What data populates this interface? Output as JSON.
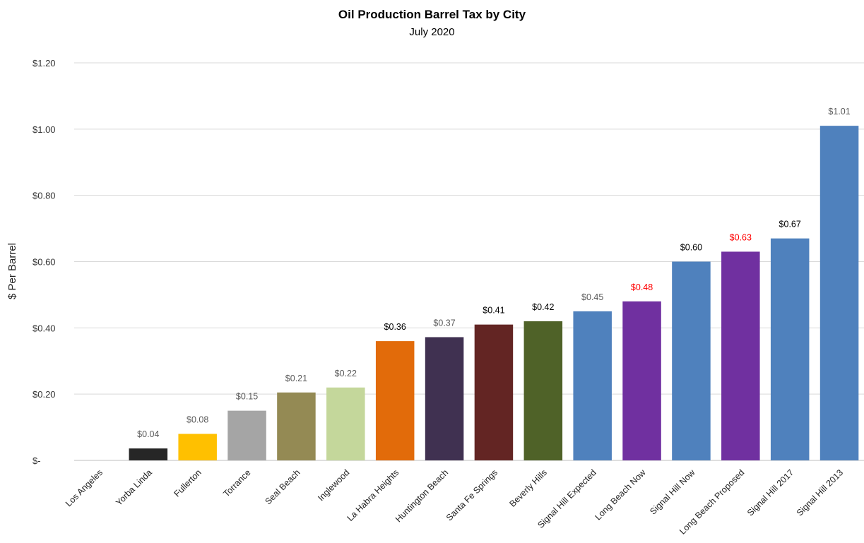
{
  "chart_data": {
    "type": "bar",
    "title": "Oil Production Barrel Tax by City",
    "subtitle": "July 2020",
    "xlabel": "",
    "ylabel": "$ Per Barrel",
    "ylim": [
      0,
      1.2
    ],
    "yticks": [
      {
        "value": 0,
        "label": "$-"
      },
      {
        "value": 0.2,
        "label": "$0.20"
      },
      {
        "value": 0.4,
        "label": "$0.40"
      },
      {
        "value": 0.6,
        "label": "$0.60"
      },
      {
        "value": 0.8,
        "label": "$0.80"
      },
      {
        "value": 1.0,
        "label": "$1.00"
      },
      {
        "value": 1.2,
        "label": "$1.20"
      }
    ],
    "grid": true,
    "legend": "none",
    "bars": [
      {
        "category": "Los Angeles",
        "value": 0,
        "label": "",
        "color": "#ffffff",
        "label_color": "#595959"
      },
      {
        "category": "Yorba Linda",
        "value": 0.036,
        "label": "$0.04",
        "color": "#262626",
        "label_color": "#595959"
      },
      {
        "category": "Fullerton",
        "value": 0.08,
        "label": "$0.08",
        "color": "#ffc000",
        "label_color": "#595959"
      },
      {
        "category": "Torrance",
        "value": 0.15,
        "label": "$0.15",
        "color": "#a5a5a5",
        "label_color": "#595959"
      },
      {
        "category": "Seal Beach",
        "value": 0.205,
        "label": "$0.21",
        "color": "#948a54",
        "label_color": "#595959"
      },
      {
        "category": "Inglewood",
        "value": 0.22,
        "label": "$0.22",
        "color": "#c4d79b",
        "label_color": "#595959"
      },
      {
        "category": "La Habra Heights",
        "value": 0.36,
        "label": "$0.36",
        "color": "#e26b0a",
        "label_color": "#000000"
      },
      {
        "category": "Huntington Beach",
        "value": 0.372,
        "label": "$0.37",
        "color": "#403151",
        "label_color": "#595959"
      },
      {
        "category": "Santa Fe Springs",
        "value": 0.41,
        "label": "$0.41",
        "color": "#632523",
        "label_color": "#000000"
      },
      {
        "category": "Beverly Hills",
        "value": 0.42,
        "label": "$0.42",
        "color": "#4f6228",
        "label_color": "#000000"
      },
      {
        "category": "Signal Hill Expected",
        "value": 0.45,
        "label": "$0.45",
        "color": "#4f81bd",
        "label_color": "#595959"
      },
      {
        "category": "Long Beach Now",
        "value": 0.48,
        "label": "$0.48",
        "color": "#7030a0",
        "label_color": "#ff0000"
      },
      {
        "category": "Signal Hill Now",
        "value": 0.6,
        "label": "$0.60",
        "color": "#4f81bd",
        "label_color": "#000000"
      },
      {
        "category": "Long Beach Proposed",
        "value": 0.63,
        "label": "$0.63",
        "color": "#7030a0",
        "label_color": "#ff0000"
      },
      {
        "category": "Signal Hill 2017",
        "value": 0.67,
        "label": "$0.67",
        "color": "#4f81bd",
        "label_color": "#000000"
      },
      {
        "category": "Signal Hill 2013",
        "value": 1.01,
        "label": "$1.01",
        "color": "#4f81bd",
        "label_color": "#595959"
      }
    ]
  }
}
